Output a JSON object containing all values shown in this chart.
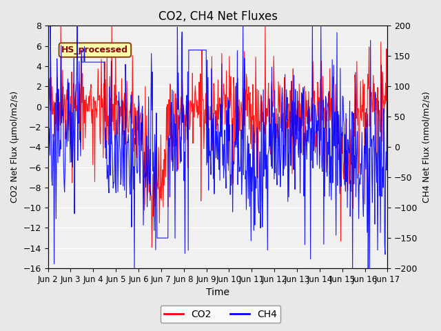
{
  "title": "CO2, CH4 Net Fluxes",
  "xlabel": "Time",
  "ylabel_left": "CO2 Net Flux (μmol/m2/s)",
  "ylabel_right": "CH4 Net Flux (nmol/m2/s)",
  "ylim_left": [
    -16,
    8
  ],
  "ylim_right": [
    -200,
    200
  ],
  "yticks_left": [
    -16,
    -14,
    -12,
    -10,
    -8,
    -6,
    -4,
    -2,
    0,
    2,
    4,
    6,
    8
  ],
  "yticks_right": [
    -200,
    -150,
    -100,
    -50,
    0,
    50,
    100,
    150,
    200
  ],
  "xtick_labels": [
    "Jun 2",
    "Jun 3",
    "Jun 4",
    "Jun 5",
    "Jun 6",
    "Jun 7",
    "Jun 8",
    "Jun 9",
    "Jun 10",
    "Jun 11",
    "Jun 12",
    "Jun 13",
    "Jun 14",
    "Jun 15",
    "Jun 16",
    "Jun 17"
  ],
  "annotation_text": "HS_processed",
  "annotation_facecolor": "#FFFFAA",
  "annotation_edgecolor": "#8B4513",
  "annotation_color": "#8B0000",
  "co2_color": "red",
  "ch4_color": "blue",
  "background_color": "#E8E8E8",
  "plot_bg_color": "#F0F0F0",
  "n_days": 15,
  "n_per_day": 48,
  "seed": 42
}
